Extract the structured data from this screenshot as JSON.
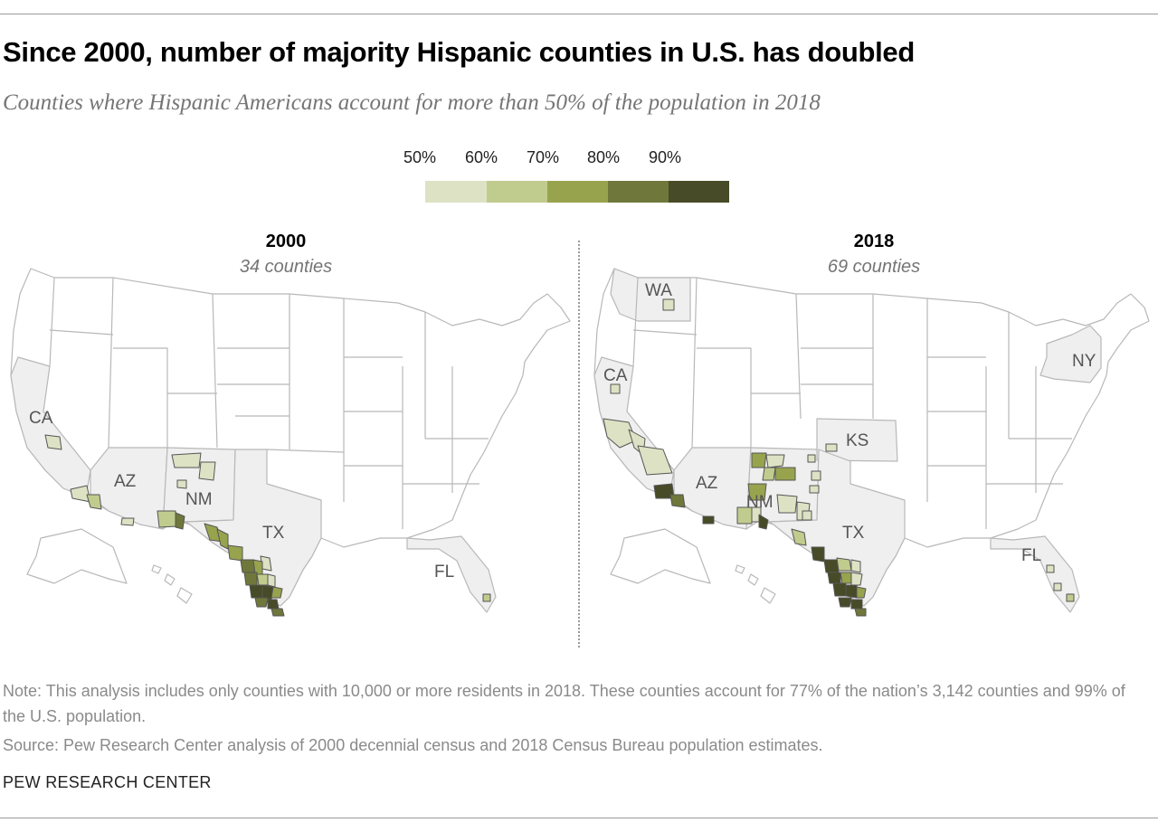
{
  "title": "Since 2000, number of majority Hispanic counties in U.S. has doubled",
  "subtitle": "Counties where Hispanic Americans account for more than 50% of the population in 2018",
  "legend": {
    "labels": [
      "50%",
      "60%",
      "70%",
      "80%",
      "90%"
    ],
    "colors": [
      "#dde2c4",
      "#c0cb8e",
      "#98a34e",
      "#6f773b",
      "#474b27"
    ]
  },
  "colors": {
    "highlight_state": "#efefef",
    "other_state": "#ffffff",
    "border": "#b8b8b8",
    "county_outline": "#555555"
  },
  "panels": [
    {
      "year": "2000",
      "count_label": "34 counties",
      "state_labels": [
        "CA",
        "AZ",
        "NM",
        "TX",
        "FL"
      ]
    },
    {
      "year": "2018",
      "count_label": "69 counties",
      "state_labels": [
        "WA",
        "CA",
        "AZ",
        "NM",
        "KS",
        "TX",
        "NY",
        "FL"
      ]
    }
  ],
  "note": "Note: This analysis includes only counties with 10,000 or more residents in 2018. These counties account for 77% of the nation’s 3,142 counties and 99% of the U.S. population.",
  "source": "Source: Pew Research Center analysis of 2000 decennial census and 2018 Census Bureau population estimates.",
  "credit": "PEW RESEARCH CENTER"
}
